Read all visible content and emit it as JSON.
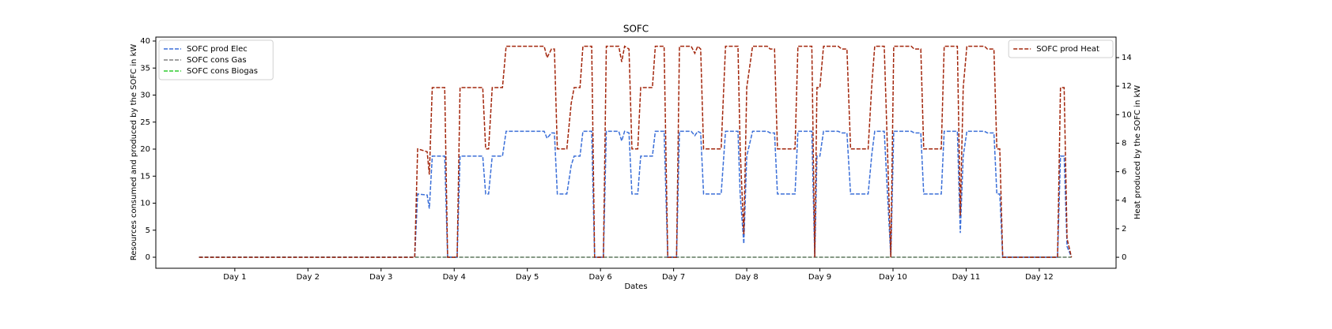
{
  "chart_data": {
    "type": "line",
    "title": "SOFC",
    "x_label": "Dates",
    "y_label": "Resources consumed and produced by the SOFC in kW",
    "y2_label": "Heat produced by the SOFC in kW",
    "xlim": [
      -0.08,
      13.05
    ],
    "ylim": [
      -2.04,
      40.73
    ],
    "y2lim": [
      -0.77,
      15.44
    ],
    "xticks": [
      {
        "value": 1,
        "label": "Day 1"
      },
      {
        "value": 2,
        "label": "Day 2"
      },
      {
        "value": 3,
        "label": "Day 3"
      },
      {
        "value": 4,
        "label": "Day 4"
      },
      {
        "value": 5,
        "label": "Day 5"
      },
      {
        "value": 6,
        "label": "Day 6"
      },
      {
        "value": 7,
        "label": "Day 7"
      },
      {
        "value": 8,
        "label": "Day 8"
      },
      {
        "value": 9,
        "label": "Day 9"
      },
      {
        "value": 10,
        "label": "Day 10"
      },
      {
        "value": 11,
        "label": "Day 11"
      },
      {
        "value": 12,
        "label": "Day 12"
      }
    ],
    "yticks": [
      0,
      5,
      10,
      15,
      20,
      25,
      30,
      35,
      40
    ],
    "y2ticks": [
      0,
      2,
      4,
      6,
      8,
      10,
      12,
      14
    ],
    "legend": "upper left",
    "legend2": "upper right",
    "x": [
      0.51,
      3.46,
      3.5,
      3.63,
      3.66,
      3.7,
      3.87,
      3.91,
      4.04,
      4.08,
      4.39,
      4.43,
      4.47,
      4.52,
      4.66,
      4.71,
      5.23,
      5.27,
      5.33,
      5.37,
      5.41,
      5.54,
      5.6,
      5.64,
      5.72,
      5.76,
      5.88,
      5.92,
      6.04,
      6.08,
      6.25,
      6.29,
      6.33,
      6.39,
      6.43,
      6.51,
      6.55,
      6.71,
      6.75,
      6.87,
      6.92,
      7.04,
      7.08,
      7.24,
      7.29,
      7.33,
      7.37,
      7.41,
      7.65,
      7.71,
      7.88,
      7.91,
      7.96,
      8.0,
      8.08,
      8.28,
      8.32,
      8.38,
      8.42,
      8.66,
      8.7,
      8.89,
      8.93,
      8.96,
      9.0,
      9.05,
      9.25,
      9.3,
      9.37,
      9.42,
      9.66,
      9.71,
      9.75,
      9.88,
      9.97,
      10.01,
      10.25,
      10.29,
      10.38,
      10.42,
      10.66,
      10.7,
      10.88,
      10.92,
      10.96,
      11.01,
      11.25,
      11.29,
      11.38,
      11.42,
      11.46,
      11.5,
      12.25,
      12.29,
      12.34,
      12.38,
      12.44
    ],
    "series": [
      {
        "name": "SOFC prod Elec",
        "color": "#3b6fd8",
        "values": [
          0,
          0,
          11.7,
          11.5,
          9,
          18.7,
          18.7,
          0,
          0,
          18.7,
          18.7,
          11.7,
          11.7,
          18.7,
          18.7,
          23.3,
          23.3,
          22,
          23,
          23,
          11.7,
          11.7,
          17,
          18.7,
          18.7,
          23.3,
          23.3,
          0,
          0,
          23.3,
          23.3,
          21.5,
          23.3,
          23,
          11.7,
          11.7,
          18.7,
          18.7,
          23.3,
          23.3,
          0,
          0,
          23.3,
          23.3,
          22.5,
          23.3,
          23,
          11.7,
          11.7,
          23.3,
          23.3,
          11.7,
          2.5,
          18.7,
          23.3,
          23.3,
          23,
          23,
          11.7,
          11.7,
          23.3,
          23.3,
          0,
          18.7,
          18.7,
          23.3,
          23.3,
          23,
          23,
          11.7,
          11.7,
          19,
          23.3,
          23.3,
          0,
          23.3,
          23.3,
          23,
          23,
          11.7,
          11.7,
          23.3,
          23.3,
          4.5,
          18.7,
          23.3,
          23.3,
          23,
          23,
          11.7,
          11.7,
          0,
          0,
          18.7,
          18.7,
          2,
          0
        ]
      },
      {
        "name": "SOFC cons Gas",
        "color": "#808080",
        "x": [
          0.51,
          12.44
        ],
        "values": [
          0,
          0
        ]
      },
      {
        "name": "SOFC cons Biogas",
        "color": "#2ecc2e",
        "x": [
          0.51,
          12.44
        ],
        "values": [
          0,
          0
        ]
      },
      {
        "name": "SOFC prod Heat",
        "color": "#a2260c",
        "axis": "y2",
        "values": [
          0,
          0,
          7.6,
          7.4,
          5.8,
          11.9,
          11.9,
          0,
          0,
          11.9,
          11.9,
          7.6,
          7.6,
          11.9,
          11.9,
          14.8,
          14.8,
          14.0,
          14.6,
          14.6,
          7.6,
          7.6,
          10.8,
          11.9,
          11.9,
          14.8,
          14.8,
          0,
          0,
          14.8,
          14.8,
          13.7,
          14.8,
          14.6,
          7.6,
          7.6,
          11.9,
          11.9,
          14.8,
          14.8,
          0,
          0,
          14.8,
          14.8,
          14.3,
          14.8,
          14.6,
          7.6,
          7.6,
          14.8,
          14.8,
          7.6,
          1.6,
          11.9,
          14.8,
          14.8,
          14.6,
          14.6,
          7.6,
          7.6,
          14.8,
          14.8,
          0,
          11.9,
          11.9,
          14.8,
          14.8,
          14.6,
          14.6,
          7.6,
          7.6,
          12.1,
          14.8,
          14.8,
          0,
          14.8,
          14.8,
          14.6,
          14.6,
          7.6,
          7.6,
          14.8,
          14.8,
          2.9,
          11.9,
          14.8,
          14.8,
          14.6,
          14.6,
          7.6,
          7.6,
          0,
          0,
          11.9,
          11.9,
          1.3,
          0
        ]
      }
    ]
  }
}
